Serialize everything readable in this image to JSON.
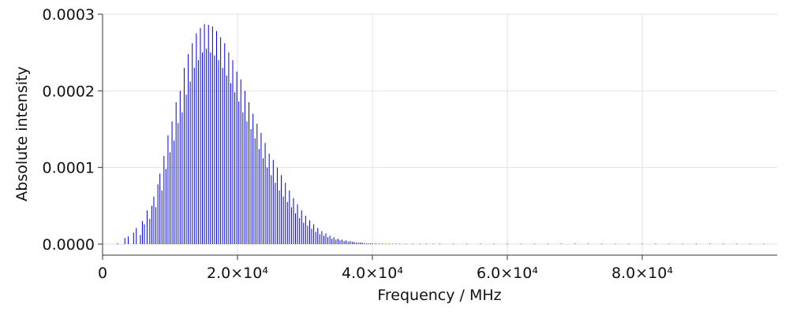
{
  "chart_data": {
    "type": "bar",
    "xlabel": "Frequency / MHz",
    "ylabel": "Absolute intensity",
    "xlim": [
      0,
      100000
    ],
    "ylim": [
      0,
      0.0003
    ],
    "x_ticks": [
      {
        "value": 0,
        "label": "0"
      },
      {
        "value": 20000,
        "label": "2.0×10⁴"
      },
      {
        "value": 40000,
        "label": "4.0×10⁴"
      },
      {
        "value": 60000,
        "label": "6.0×10⁴"
      },
      {
        "value": 80000,
        "label": "8.0×10⁴"
      }
    ],
    "y_ticks": [
      {
        "value": 0.0,
        "label": "0.0000"
      },
      {
        "value": 0.0001,
        "label": "0.0001"
      },
      {
        "value": 0.0002,
        "label": "0.0002"
      },
      {
        "value": 0.0003,
        "label": "0.0003"
      }
    ],
    "grid": true,
    "color": "#0000ee",
    "series": [
      {
        "x": [
          2200,
          3300,
          3800,
          4600,
          5000,
          5600,
          5900,
          6200,
          6600,
          7000,
          7300,
          7600,
          7900,
          8200,
          8500,
          8800,
          9100,
          9400,
          9700,
          10000,
          10300,
          10600,
          10900,
          11200,
          11500,
          11800,
          12100,
          12400,
          12700,
          13000,
          13300,
          13600,
          13900,
          14200,
          14500,
          14800,
          15100,
          15400,
          15700,
          16000,
          16300,
          16600,
          16900,
          17200,
          17500,
          17800,
          18100,
          18400,
          18700,
          19000,
          19300,
          19600,
          19900,
          20200,
          20500,
          20800,
          21100,
          21400,
          21700,
          22000,
          22300,
          22600,
          22900,
          23200,
          23500,
          23800,
          24100,
          24400,
          24700,
          25000,
          25300,
          25600,
          25900,
          26200,
          26500,
          26800,
          27100,
          27400,
          27700,
          28000,
          28300,
          28600,
          28900,
          29200,
          29500,
          29800,
          30100,
          30400,
          30700,
          31000,
          31300,
          31600,
          31900,
          32200,
          32500,
          32800,
          33100,
          33400,
          33700,
          34000,
          34300,
          34600,
          34900,
          35200,
          35500,
          35800,
          36100,
          36400,
          36700,
          37000,
          37300,
          37600,
          37900,
          38200,
          38500,
          38800,
          39100,
          39400,
          39700,
          40000,
          40500,
          41000,
          41500,
          42000,
          42500,
          43000,
          43500,
          44000,
          45000,
          46000,
          47000,
          48000,
          49000,
          50000,
          52000,
          54000,
          56000,
          58000,
          60000,
          62000,
          64000,
          66000,
          68000,
          70000,
          72000,
          74000,
          76000,
          78000,
          80000,
          82000,
          84000,
          86000,
          88000,
          90000,
          92000,
          94000,
          96000,
          98000
        ],
        "values": [
          1e-06,
          8e-06,
          1e-05,
          1.5e-05,
          2.1e-05,
          1.2e-05,
          3e-05,
          2.6e-05,
          4.4e-05,
          3.3e-05,
          5e-05,
          6.2e-05,
          4.8e-05,
          7.8e-05,
          9.2e-05,
          7e-05,
          0.000115,
          9.8e-05,
          0.000142,
          0.00012,
          0.00016,
          0.000135,
          0.000185,
          0.000158,
          0.0002,
          0.000172,
          0.00023,
          0.000195,
          0.000248,
          0.000212,
          0.000262,
          0.00023,
          0.000275,
          0.00024,
          0.000282,
          0.00025,
          0.000287,
          0.000255,
          0.000286,
          0.00025,
          0.000284,
          0.000246,
          0.000278,
          0.00024,
          0.00027,
          0.00023,
          0.000262,
          0.00022,
          0.00025,
          0.00021,
          0.00024,
          0.000198,
          0.000225,
          0.000186,
          0.000215,
          0.000172,
          0.0002,
          0.00016,
          0.000185,
          0.00015,
          0.00017,
          0.000138,
          0.000157,
          0.000124,
          0.000145,
          0.000112,
          0.000132,
          0.0001,
          0.000118,
          9e-05,
          0.00011,
          8e-05,
          0.0001,
          7e-05,
          9e-05,
          6.2e-05,
          8e-05,
          5.5e-05,
          7e-05,
          4.8e-05,
          6e-05,
          4e-05,
          5.2e-05,
          3.4e-05,
          4.4e-05,
          2.8e-05,
          3.7e-05,
          2.4e-05,
          3.1e-05,
          2e-05,
          2.6e-05,
          1.6e-05,
          2.1e-05,
          1.3e-05,
          1.7e-05,
          1.1e-05,
          1.4e-05,
          9e-06,
          1.1e-05,
          7e-06,
          9e-06,
          6e-06,
          7e-06,
          5e-06,
          6e-06,
          4e-06,
          5e-06,
          3e-06,
          4e-06,
          3e-06,
          3e-06,
          2e-06,
          2e-06,
          2e-06,
          2e-06,
          1e-06,
          1e-06,
          1e-06,
          1e-06,
          1e-06,
          1e-06,
          8e-07,
          7e-07,
          6e-07,
          5e-07,
          5e-07,
          4e-07,
          4e-07,
          3e-07,
          3e-07,
          3e-07,
          2e-07,
          2e-07,
          2e-07,
          2e-07,
          2e-07,
          1e-07,
          1e-07,
          1e-07,
          1e-07,
          1e-07,
          1e-07,
          1e-07,
          1e-07,
          1e-07,
          1e-07,
          1e-07,
          1e-07,
          1e-07,
          1e-07,
          1e-07,
          1e-07,
          1e-07,
          1e-07,
          1e-07,
          1e-07,
          1e-07,
          1e-07
        ]
      }
    ]
  }
}
